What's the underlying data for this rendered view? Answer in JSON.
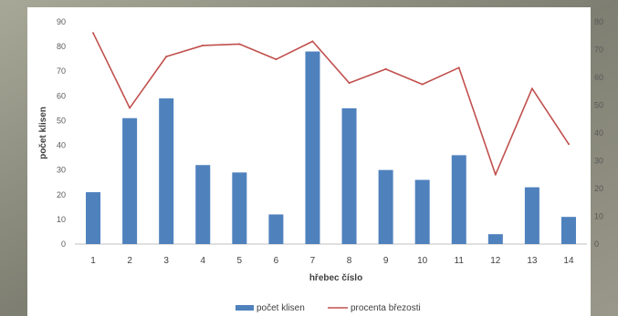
{
  "chart_data": {
    "type": "bar+line",
    "categories": [
      "1",
      "2",
      "3",
      "4",
      "5",
      "6",
      "7",
      "8",
      "9",
      "10",
      "11",
      "12",
      "13",
      "14"
    ],
    "series": [
      {
        "name": "počet klisen",
        "type": "bar",
        "axis": "left",
        "color": "#4f81bd",
        "values": [
          21,
          51,
          59,
          32,
          29,
          12,
          78,
          55,
          30,
          26,
          36,
          4,
          23,
          11
        ]
      },
      {
        "name": "procenta březosti",
        "type": "line",
        "axis": "right",
        "color": "#c0504d",
        "values": [
          76,
          49,
          67.5,
          71.5,
          72,
          66.5,
          73,
          58,
          63,
          57.5,
          63.5,
          25,
          56,
          36
        ]
      }
    ],
    "xlabel": "hřebec číslo",
    "ylabel": "počet klisen",
    "y_left": {
      "lim": [
        0,
        90
      ],
      "ticks": [
        0,
        10,
        20,
        30,
        40,
        50,
        60,
        70,
        80,
        90
      ]
    },
    "y_right": {
      "lim": [
        0,
        80
      ],
      "ticks": [
        0,
        10,
        20,
        30,
        40,
        50,
        60,
        70,
        80
      ]
    },
    "grid": false,
    "legend_position": "bottom",
    "background": "#ffffff"
  }
}
